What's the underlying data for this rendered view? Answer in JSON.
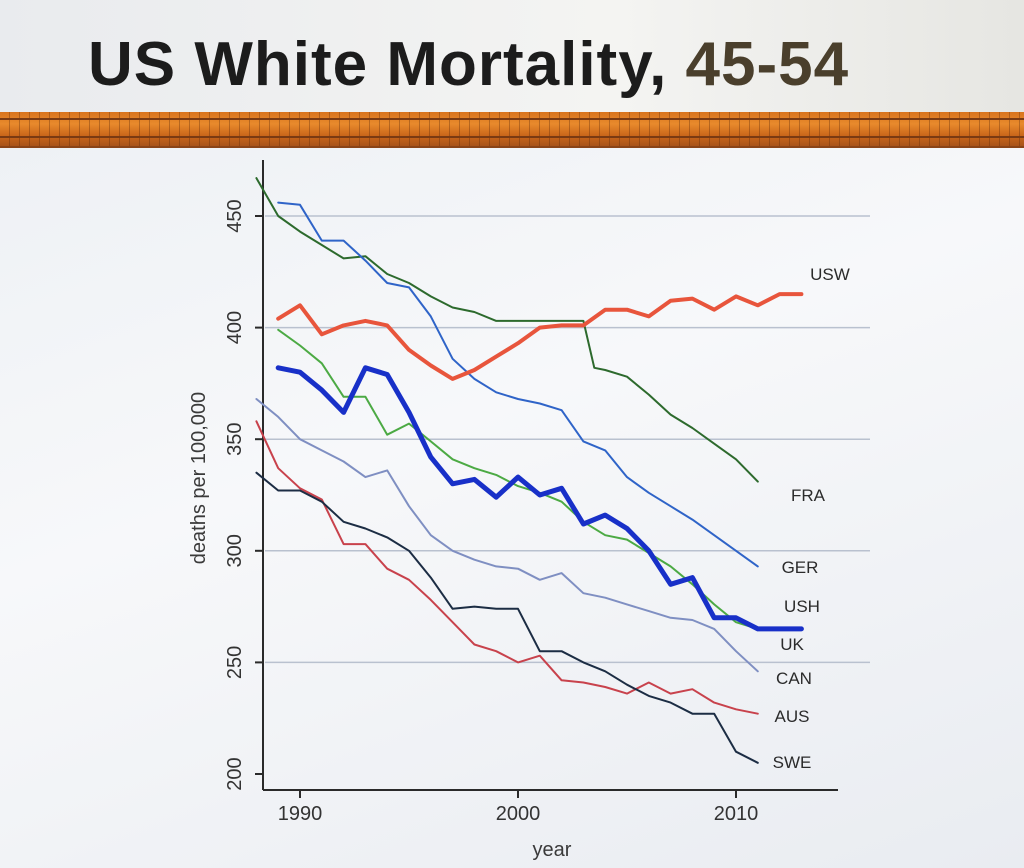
{
  "slide": {
    "title_main": "US White Mortality,",
    "title_accent": "45-54"
  },
  "colors": {
    "title_text": "#1c1c1c",
    "title_accent": "#4a3f2c",
    "stripe": "#e07a24"
  },
  "chart_data": {
    "type": "line",
    "xlabel": "year",
    "ylabel": "deaths per 100,000",
    "xlim": [
      1989,
      2015
    ],
    "ylim": [
      195,
      472
    ],
    "xticks": [
      1990,
      2000,
      2010
    ],
    "yticks": [
      200,
      250,
      300,
      350,
      400,
      450
    ],
    "grid": "horizontal",
    "series": [
      {
        "name": "USW",
        "color": "#e8553c",
        "width": 4,
        "x": [
          1989,
          1990,
          1991,
          1992,
          1993,
          1994,
          1995,
          1996,
          1997,
          1998,
          1999,
          2000,
          2001,
          2002,
          2003,
          2004,
          2005,
          2006,
          2007,
          2008,
          2009,
          2010,
          2011,
          2012,
          2013
        ],
        "y": [
          404,
          410,
          397,
          401,
          403,
          401,
          390,
          383,
          377,
          381,
          387,
          393,
          400,
          401,
          401,
          408,
          408,
          405,
          412,
          413,
          408,
          414,
          410,
          415,
          415
        ]
      },
      {
        "name": "FRA",
        "color": "#2d6a2d",
        "width": 2,
        "x": [
          1988,
          1989,
          1990,
          1991,
          1992,
          1993,
          1994,
          1995,
          1996,
          1997,
          1998,
          1999,
          2000,
          2001,
          2002,
          2003,
          2003.5,
          2004,
          2005,
          2006,
          2007,
          2008,
          2009,
          2010,
          2011
        ],
        "y": [
          467,
          450,
          443,
          437,
          431,
          432,
          424,
          420,
          414,
          409,
          407,
          403,
          403,
          403,
          403,
          403,
          382,
          381,
          378,
          370,
          361,
          355,
          348,
          341,
          331
        ]
      },
      {
        "name": "GER",
        "color": "#2f64c8",
        "width": 2,
        "x": [
          1989,
          1990,
          1991,
          1992,
          1993,
          1994,
          1995,
          1996,
          1997,
          1998,
          1999,
          2000,
          2001,
          2002,
          2003,
          2004,
          2005,
          2006,
          2007,
          2008,
          2009,
          2010,
          2011
        ],
        "y": [
          456,
          455,
          439,
          439,
          430,
          420,
          418,
          405,
          386,
          377,
          371,
          368,
          366,
          363,
          349,
          345,
          333,
          326,
          320,
          314,
          307,
          300,
          293
        ]
      },
      {
        "name": "USH",
        "color": "#1830c8",
        "width": 5,
        "x": [
          1989,
          1990,
          1991,
          1992,
          1993,
          1994,
          1995,
          1996,
          1997,
          1998,
          1999,
          2000,
          2001,
          2002,
          2003,
          2004,
          2005,
          2006,
          2007,
          2008,
          2009,
          2010,
          2011,
          2012,
          2013
        ],
        "y": [
          382,
          380,
          372,
          362,
          382,
          379,
          362,
          342,
          330,
          332,
          324,
          333,
          325,
          328,
          312,
          316,
          310,
          300,
          285,
          288,
          270,
          270,
          265,
          265,
          265
        ]
      },
      {
        "name": "UK",
        "color": "#4caa44",
        "width": 2,
        "x": [
          1989,
          1990,
          1991,
          1992,
          1993,
          1994,
          1995,
          1996,
          1997,
          1998,
          1999,
          2000,
          2001,
          2002,
          2003,
          2004,
          2005,
          2006,
          2007,
          2008,
          2009,
          2010,
          2011
        ],
        "y": [
          399,
          392,
          384,
          369,
          369,
          352,
          357,
          349,
          341,
          337,
          334,
          329,
          326,
          322,
          313,
          307,
          305,
          299,
          293,
          285,
          276,
          268,
          265
        ]
      },
      {
        "name": "CAN",
        "color": "#7f8fc2",
        "width": 2,
        "x": [
          1988,
          1989,
          1990,
          1991,
          1992,
          1993,
          1994,
          1995,
          1996,
          1997,
          1998,
          1999,
          2000,
          2001,
          2002,
          2003,
          2004,
          2005,
          2006,
          2007,
          2008,
          2009,
          2010,
          2011
        ],
        "y": [
          368,
          360,
          350,
          345,
          340,
          333,
          336,
          320,
          307,
          300,
          296,
          293,
          292,
          287,
          290,
          281,
          279,
          276,
          273,
          270,
          269,
          265,
          255,
          246
        ]
      },
      {
        "name": "AUS",
        "color": "#c8424c",
        "width": 2,
        "x": [
          1988,
          1989,
          1990,
          1991,
          1992,
          1993,
          1994,
          1995,
          1996,
          1997,
          1998,
          1999,
          2000,
          2001,
          2002,
          2003,
          2004,
          2005,
          2006,
          2007,
          2008,
          2009,
          2010,
          2011
        ],
        "y": [
          358,
          337,
          328,
          323,
          303,
          303,
          292,
          287,
          278,
          268,
          258,
          255,
          250,
          253,
          242,
          241,
          239,
          236,
          241,
          236,
          238,
          232,
          229,
          227
        ]
      },
      {
        "name": "SWE",
        "color": "#1c2d44",
        "width": 2,
        "x": [
          1988,
          1989,
          1990,
          1991,
          1992,
          1993,
          1994,
          1995,
          1996,
          1997,
          1998,
          1999,
          2000,
          2001,
          2002,
          2003,
          2004,
          2005,
          2006,
          2007,
          2008,
          2009,
          2010,
          2011
        ],
        "y": [
          335,
          327,
          327,
          322,
          313,
          310,
          306,
          300,
          288,
          274,
          275,
          274,
          274,
          255,
          255,
          250,
          246,
          240,
          235,
          232,
          227,
          227,
          210,
          205
        ]
      }
    ]
  }
}
